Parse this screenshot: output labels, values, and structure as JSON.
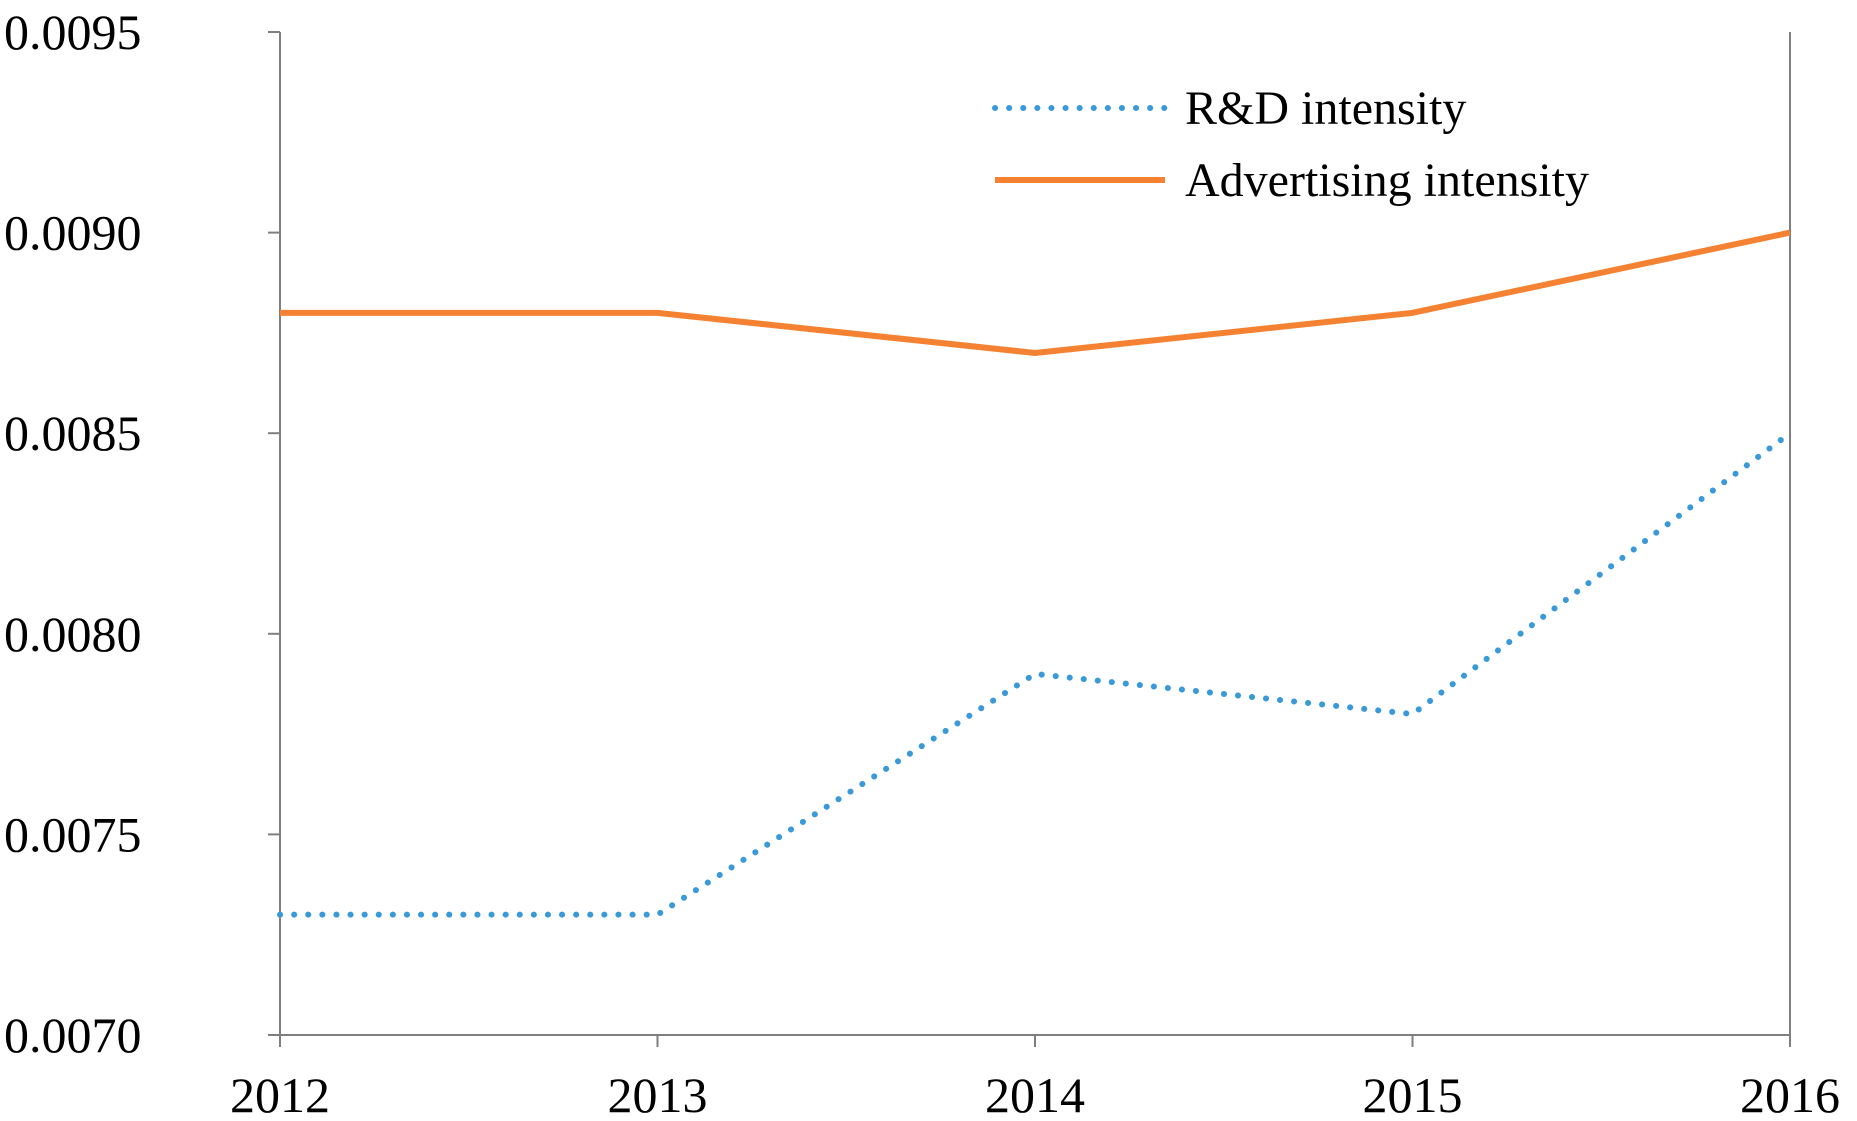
{
  "chart_data": {
    "type": "line",
    "title": "",
    "xlabel": "",
    "ylabel": "",
    "x": [
      "2012",
      "2013",
      "2014",
      "2015",
      "2016"
    ],
    "ylim": [
      0.007,
      0.0095
    ],
    "yticks": [
      "0.0070",
      "0.0075",
      "0.0080",
      "0.0085",
      "0.0090",
      "0.0095"
    ],
    "ytick_values": [
      0.007,
      0.0075,
      0.008,
      0.0085,
      0.009,
      0.0095
    ],
    "grid": false,
    "legend_position": "top-right",
    "series": [
      {
        "name": "R&D intensity",
        "values": [
          0.0073,
          0.0073,
          0.0079,
          0.0078,
          0.0085
        ],
        "color": "#3a9ad9",
        "style": "dotted"
      },
      {
        "name": "Advertising intensity",
        "values": [
          0.0088,
          0.0088,
          0.0087,
          0.0088,
          0.009
        ],
        "color": "#f58232",
        "style": "solid"
      }
    ]
  }
}
